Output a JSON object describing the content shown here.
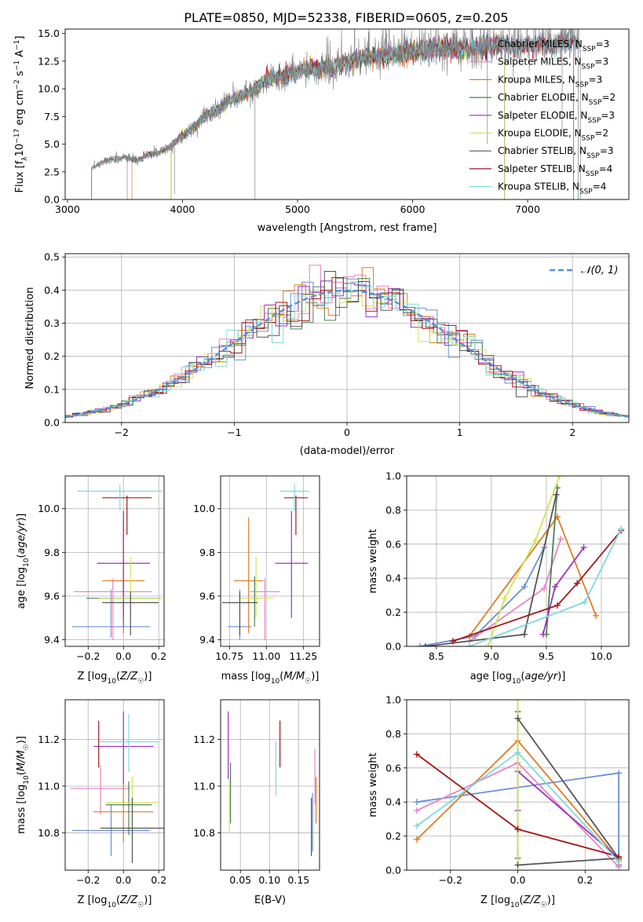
{
  "figure_title": "PLATE=0850, MJD=52338, FIBERID=0605, z=0.205",
  "colors": {
    "chabrier_miles": "#6a8fd6",
    "salpeter_miles": "#e586c0",
    "kroupa_miles": "#e07b22",
    "chabrier_elodie": "#4f7f4f",
    "salpeter_elodie": "#9b30c0",
    "kroupa_elodie": "#cfe35a",
    "chabrier_stelib": "#555555",
    "salpeter_stelib": "#a01818",
    "kroupa_stelib": "#80d8dc",
    "spectrum": "#808080",
    "normal": "#5b8fd8"
  },
  "chart_data": [
    {
      "id": "spectrum",
      "type": "line",
      "xlabel": "wavelength [Angstrom, rest frame]",
      "ylabel": "Flux [f_λ 10^-17 erg cm^-2 s^-1 A^-1]",
      "xlim": [
        2980,
        7880
      ],
      "ylim": [
        0,
        15.4
      ],
      "xticks": [
        3000,
        4000,
        5000,
        6000,
        7000
      ],
      "yticks": [
        0.0,
        2.5,
        5.0,
        7.5,
        10.0,
        12.5,
        15.0
      ],
      "legend_position": "top-right",
      "legend": [
        {
          "label": "Chabrier MILES, N_SSP=3",
          "color": "#6a8fd6"
        },
        {
          "label": "Salpeter MILES, N_SSP=3",
          "color": "#e586c0"
        },
        {
          "label": "Kroupa MILES, N_SSP=3",
          "color": "#e07b22"
        },
        {
          "label": "Chabrier ELODIE, N_SSP=2",
          "color": "#4f7f4f"
        },
        {
          "label": "Salpeter ELODIE, N_SSP=3",
          "color": "#9b30c0"
        },
        {
          "label": "Kroupa ELODIE, N_SSP=2",
          "color": "#cfe35a"
        },
        {
          "label": "Chabrier STELIB, N_SSP=3",
          "color": "#555555"
        },
        {
          "label": "Salpeter STELIB, N_SSP=4",
          "color": "#a01818"
        },
        {
          "label": "Kroupa STELIB, N_SSP=4",
          "color": "#80d8dc"
        }
      ],
      "spectrum_envelope": [
        [
          3210,
          2.8
        ],
        [
          3300,
          3.4
        ],
        [
          3400,
          3.6
        ],
        [
          3500,
          3.8
        ],
        [
          3600,
          3.5
        ],
        [
          3700,
          4.0
        ],
        [
          3800,
          4.3
        ],
        [
          3900,
          4.8
        ],
        [
          4000,
          5.8
        ],
        [
          4100,
          6.5
        ],
        [
          4200,
          7.6
        ],
        [
          4300,
          8.0
        ],
        [
          4400,
          8.9
        ],
        [
          4500,
          9.3
        ],
        [
          4600,
          9.8
        ],
        [
          4700,
          10.6
        ],
        [
          4800,
          11.0
        ],
        [
          4900,
          11.3
        ],
        [
          5000,
          11.5
        ],
        [
          5100,
          11.9
        ],
        [
          5200,
          11.8
        ],
        [
          5300,
          12.0
        ],
        [
          5400,
          12.2
        ],
        [
          5500,
          12.6
        ],
        [
          5600,
          12.8
        ],
        [
          5700,
          12.9
        ],
        [
          5800,
          13.0
        ],
        [
          5900,
          13.2
        ],
        [
          6000,
          13.4
        ],
        [
          6100,
          13.5
        ],
        [
          6200,
          13.6
        ],
        [
          6300,
          13.8
        ],
        [
          6400,
          13.5
        ],
        [
          6500,
          13.6
        ],
        [
          6600,
          13.8
        ],
        [
          6700,
          13.9
        ],
        [
          6800,
          14.0
        ],
        [
          6900,
          13.8
        ],
        [
          7000,
          14.0
        ],
        [
          7100,
          14.1
        ],
        [
          7200,
          14.0
        ],
        [
          7300,
          14.2
        ],
        [
          7400,
          14.3
        ],
        [
          7460,
          14.1
        ]
      ],
      "model_ranges": [
        {
          "color": "#6a8fd6",
          "x_start": 3520,
          "x_end": 7440
        },
        {
          "color": "#e586c0",
          "x_start": 3520,
          "x_end": 7440
        },
        {
          "color": "#e07b22",
          "x_start": 3560,
          "x_end": 6800
        },
        {
          "color": "#4f7f4f",
          "x_start": 3900,
          "x_end": 6800
        },
        {
          "color": "#9b30c0",
          "x_start": 3900,
          "x_end": 6800
        },
        {
          "color": "#cfe35a",
          "x_start": 3900,
          "x_end": 6800
        },
        {
          "color": "#555555",
          "x_start": 3210,
          "x_end": 7400
        },
        {
          "color": "#a01818",
          "x_start": 3210,
          "x_end": 7440
        },
        {
          "color": "#80d8dc",
          "x_start": 3210,
          "x_end": 7440
        }
      ]
    },
    {
      "id": "residuals",
      "type": "area",
      "xlabel": "(data-model)/error",
      "ylabel": "Normed distribution",
      "xlim": [
        -2.5,
        2.5
      ],
      "ylim": [
        0,
        0.51
      ],
      "xticks": [
        -2,
        -1,
        0,
        1,
        2
      ],
      "yticks": [
        0.0,
        0.1,
        0.2,
        0.3,
        0.4,
        0.5
      ],
      "grid": true,
      "bin_width": 0.1,
      "normal_label": "𝒩(0, 1)",
      "legend_position": "top-right"
    },
    {
      "id": "age_vs_Z",
      "type": "scatter",
      "xlabel": "Z [log10(Z/Z☉)]",
      "ylabel": "age  [log10(age/yr)]",
      "xlim": [
        -0.33,
        0.23
      ],
      "ylim": [
        9.37,
        10.15
      ],
      "xticks": [
        -0.2,
        0.0,
        0.2
      ],
      "yticks": [
        9.4,
        9.6,
        9.8,
        10.0
      ],
      "grid": true,
      "points": [
        {
          "color": "#6a8fd6",
          "x": -0.07,
          "xerr": 0.22,
          "y": 9.46,
          "ylo": 9.41,
          "yhi": 9.63
        },
        {
          "color": "#e586c0",
          "x": -0.06,
          "xerr": 0.22,
          "y": 9.62,
          "ylo": 9.4,
          "yhi": 9.68
        },
        {
          "color": "#e07b22",
          "x": 0.0,
          "xerr": 0.12,
          "y": 9.67,
          "ylo": 9.43,
          "yhi": 9.96
        },
        {
          "color": "#4f7f4f",
          "x": 0.0,
          "xerr": 0.21,
          "y": 9.59,
          "ylo": 9.46,
          "yhi": 9.69
        },
        {
          "color": "#9b30c0",
          "x": 0.0,
          "xerr": 0.15,
          "y": 9.75,
          "ylo": 9.5,
          "yhi": 9.99
        },
        {
          "color": "#cfe35a",
          "x": 0.04,
          "xerr": 0.18,
          "y": 9.59,
          "ylo": 9.5,
          "yhi": 9.78
        },
        {
          "color": "#555555",
          "x": 0.04,
          "xerr": 0.16,
          "y": 9.57,
          "ylo": 9.42,
          "yhi": 9.62
        },
        {
          "color": "#a01818",
          "x": 0.02,
          "xerr": 0.14,
          "y": 10.05,
          "ylo": 9.88,
          "yhi": 10.06
        },
        {
          "color": "#80d8dc",
          "x": -0.02,
          "xerr": 0.24,
          "y": 10.08,
          "ylo": 9.99,
          "yhi": 10.11
        }
      ]
    },
    {
      "id": "age_vs_mass",
      "type": "scatter",
      "xlabel": "mass [log10(M/M☉)]",
      "ylabel": "",
      "xlim": [
        10.69,
        11.36
      ],
      "ylim": [
        9.37,
        10.15
      ],
      "xticks": [
        10.75,
        11.0,
        11.25
      ],
      "yticks": [
        9.4,
        9.6,
        9.8,
        10.0
      ],
      "grid": true,
      "points": [
        {
          "color": "#6a8fd6",
          "x": 10.82,
          "xerr": 0.08,
          "y": 9.46,
          "ylo": 9.4,
          "yhi": 9.63
        },
        {
          "color": "#e586c0",
          "x": 10.99,
          "xerr": 0.1,
          "y": 9.62,
          "ylo": 9.4,
          "yhi": 9.68
        },
        {
          "color": "#e07b22",
          "x": 10.88,
          "xerr": 0.1,
          "y": 9.67,
          "ylo": 9.43,
          "yhi": 9.96
        },
        {
          "color": "#4f7f4f",
          "x": 10.92,
          "xerr": 0.02,
          "y": 9.59,
          "ylo": 9.46,
          "yhi": 9.69
        },
        {
          "color": "#9b30c0",
          "x": 11.17,
          "xerr": 0.11,
          "y": 9.75,
          "ylo": 9.5,
          "yhi": 9.99
        },
        {
          "color": "#cfe35a",
          "x": 10.93,
          "xerr": 0.12,
          "y": 9.59,
          "ylo": 9.5,
          "yhi": 9.78
        },
        {
          "color": "#555555",
          "x": 10.82,
          "xerr": 0.12,
          "y": 9.57,
          "ylo": 9.42,
          "yhi": 9.62
        },
        {
          "color": "#a01818",
          "x": 11.2,
          "xerr": 0.08,
          "y": 10.05,
          "ylo": 9.88,
          "yhi": 10.06
        },
        {
          "color": "#80d8dc",
          "x": 11.19,
          "xerr": 0.1,
          "y": 10.08,
          "ylo": 9.99,
          "yhi": 10.11
        }
      ]
    },
    {
      "id": "mass_weight_vs_age",
      "type": "line",
      "xlabel": "age  [log10(age/yr)]",
      "ylabel": "mass weight",
      "xlim": [
        8.23,
        10.25
      ],
      "ylim": [
        0,
        1.0
      ],
      "xticks": [
        8.5,
        9.0,
        9.5,
        10.0
      ],
      "yticks": [
        0.0,
        0.2,
        0.4,
        0.6,
        0.8,
        1.0
      ],
      "grid": true,
      "series": [
        {
          "color": "#6a8fd6",
          "points": [
            [
              8.35,
              0.0
            ],
            [
              8.85,
              0.06
            ],
            [
              9.3,
              0.35
            ],
            [
              9.48,
              0.58
            ]
          ]
        },
        {
          "color": "#e586c0",
          "points": [
            [
              8.8,
              0.03
            ],
            [
              9.48,
              0.34
            ],
            [
              9.63,
              0.63
            ]
          ]
        },
        {
          "color": "#e07b22",
          "points": [
            [
              8.8,
              0.06
            ],
            [
              9.6,
              0.76
            ],
            [
              9.95,
              0.18
            ]
          ]
        },
        {
          "color": "#4f7f4f",
          "points": [
            [
              9.5,
              0.07
            ],
            [
              9.6,
              0.93
            ]
          ]
        },
        {
          "color": "#9b30c0",
          "points": [
            [
              9.47,
              0.07
            ],
            [
              9.58,
              0.35
            ],
            [
              9.84,
              0.58
            ]
          ]
        },
        {
          "color": "#cfe35a",
          "points": [
            [
              8.97,
              0.0
            ],
            [
              9.12,
              0.28
            ],
            [
              9.4,
              0.62
            ],
            [
              9.62,
              1.0
            ]
          ]
        },
        {
          "color": "#555555",
          "points": [
            [
              8.4,
              0.0
            ],
            [
              9.3,
              0.07
            ],
            [
              9.59,
              0.89
            ]
          ]
        },
        {
          "color": "#a01818",
          "points": [
            [
              8.65,
              0.03
            ],
            [
              9.6,
              0.24
            ],
            [
              9.78,
              0.37
            ],
            [
              10.18,
              0.68
            ]
          ]
        },
        {
          "color": "#80d8dc",
          "points": [
            [
              8.8,
              0.0
            ],
            [
              9.85,
              0.26
            ],
            [
              10.18,
              0.69
            ]
          ]
        }
      ]
    },
    {
      "id": "mass_vs_Z",
      "type": "scatter",
      "xlabel": "Z [log10(Z/Z☉)]",
      "ylabel": "mass [log10(M/M☉)]",
      "xlim": [
        -0.33,
        0.23
      ],
      "ylim": [
        10.64,
        11.37
      ],
      "xticks": [
        -0.2,
        0.0,
        0.2
      ],
      "yticks": [
        10.8,
        11.0,
        11.2
      ],
      "grid": true,
      "points": [
        {
          "color": "#6a8fd6",
          "x": -0.07,
          "xerr": 0.22,
          "y": 10.81,
          "ylo": 10.7,
          "yhi": 10.92
        },
        {
          "color": "#e586c0",
          "x": -0.13,
          "xerr": 0.17,
          "y": 10.99,
          "ylo": 10.88,
          "yhi": 11.09
        },
        {
          "color": "#e07b22",
          "x": 0.0,
          "xerr": 0.17,
          "y": 10.89,
          "ylo": 10.76,
          "yhi": 11.03
        },
        {
          "color": "#4f7f4f",
          "x": 0.03,
          "xerr": 0.13,
          "y": 10.92,
          "ylo": 10.79,
          "yhi": 11.02
        },
        {
          "color": "#9b30c0",
          "x": 0.0,
          "xerr": 0.17,
          "y": 11.17,
          "ylo": 11.01,
          "yhi": 11.32
        },
        {
          "color": "#cfe35a",
          "x": 0.05,
          "xerr": 0.15,
          "y": 10.93,
          "ylo": 10.79,
          "yhi": 11.04
        },
        {
          "color": "#555555",
          "x": 0.05,
          "xerr": 0.18,
          "y": 10.82,
          "ylo": 10.67,
          "yhi": 10.95
        },
        {
          "color": "#a01818",
          "x": -0.14,
          "xerr": 0.0,
          "y": 11.18,
          "ylo": 11.08,
          "yhi": 11.28
        },
        {
          "color": "#80d8dc",
          "x": 0.03,
          "xerr": 0.17,
          "y": 11.19,
          "ylo": 11.06,
          "yhi": 11.31
        }
      ]
    },
    {
      "id": "mass_vs_ebv",
      "type": "scatter",
      "xlabel": "E(B-V)",
      "ylabel": "",
      "xlim": [
        0.016,
        0.186
      ],
      "ylim": [
        10.64,
        11.37
      ],
      "xticks": [
        0.05,
        0.1,
        0.15
      ],
      "yticks": [
        10.8,
        11.0,
        11.2
      ],
      "grid": true,
      "points": [
        {
          "color": "#6a8fd6",
          "x": 0.174,
          "xerr": 0.0,
          "y": 10.85,
          "ylo": 10.72,
          "yhi": 10.97
        },
        {
          "color": "#e586c0",
          "x": 0.178,
          "xerr": 0.0,
          "y": 11.02,
          "ylo": 10.92,
          "yhi": 11.16
        },
        {
          "color": "#e07b22",
          "x": 0.18,
          "xerr": 0.0,
          "y": 10.92,
          "ylo": 10.84,
          "yhi": 11.04
        },
        {
          "color": "#4f7f4f",
          "x": 0.033,
          "xerr": 0.0,
          "y": 10.97,
          "ylo": 10.84,
          "yhi": 11.1
        },
        {
          "color": "#9b30c0",
          "x": 0.029,
          "xerr": 0.0,
          "y": 11.18,
          "ylo": 11.03,
          "yhi": 11.32
        },
        {
          "color": "#cfe35a",
          "x": 0.031,
          "xerr": 0.0,
          "y": 10.92,
          "ylo": 10.8,
          "yhi": 11.03
        },
        {
          "color": "#555555",
          "x": 0.172,
          "xerr": 0.0,
          "y": 10.82,
          "ylo": 10.7,
          "yhi": 10.95
        },
        {
          "color": "#a01818",
          "x": 0.118,
          "xerr": 0.0,
          "y": 11.18,
          "ylo": 11.08,
          "yhi": 11.28
        },
        {
          "color": "#80d8dc",
          "x": 0.111,
          "xerr": 0.0,
          "y": 11.06,
          "ylo": 10.96,
          "yhi": 11.19
        }
      ]
    },
    {
      "id": "mass_weight_vs_Z",
      "type": "line",
      "xlabel": "Z [log10(Z/Z☉)]",
      "ylabel": "mass weight",
      "xlim": [
        -0.33,
        0.33
      ],
      "ylim": [
        0,
        1.0
      ],
      "xticks": [
        -0.2,
        0.0,
        0.2
      ],
      "yticks": [
        0.0,
        0.2,
        0.4,
        0.6,
        0.8,
        1.0
      ],
      "grid": true,
      "series": [
        {
          "color": "#6a8fd6",
          "points": [
            [
              -0.3,
              0.4
            ],
            [
              0.3,
              0.57
            ],
            [
              0.3,
              0.03
            ]
          ]
        },
        {
          "color": "#e586c0",
          "points": [
            [
              -0.3,
              0.35
            ],
            [
              0.0,
              0.63
            ],
            [
              0.3,
              0.02
            ]
          ]
        },
        {
          "color": "#e07b22",
          "points": [
            [
              -0.3,
              0.18
            ],
            [
              0.0,
              0.76
            ],
            [
              0.3,
              0.06
            ]
          ]
        },
        {
          "color": "#4f7f4f",
          "points": [
            [
              0.0,
              0.07
            ],
            [
              0.0,
              0.93
            ]
          ]
        },
        {
          "color": "#9b30c0",
          "points": [
            [
              0.0,
              0.35
            ],
            [
              0.0,
              0.58
            ],
            [
              0.3,
              0.07
            ]
          ]
        },
        {
          "color": "#cfe35a",
          "points": [
            [
              0.0,
              0.0
            ],
            [
              0.0,
              1.0
            ]
          ]
        },
        {
          "color": "#555555",
          "points": [
            [
              0.0,
              0.03
            ],
            [
              0.3,
              0.07
            ],
            [
              0.0,
              0.89
            ]
          ]
        },
        {
          "color": "#a01818",
          "points": [
            [
              -0.3,
              0.68
            ],
            [
              0.0,
              0.24
            ],
            [
              0.0,
              0.24
            ],
            [
              0.3,
              0.08
            ]
          ]
        },
        {
          "color": "#80d8dc",
          "points": [
            [
              -0.3,
              0.26
            ],
            [
              0.0,
              0.69
            ],
            [
              0.3,
              0.05
            ]
          ]
        }
      ]
    }
  ]
}
